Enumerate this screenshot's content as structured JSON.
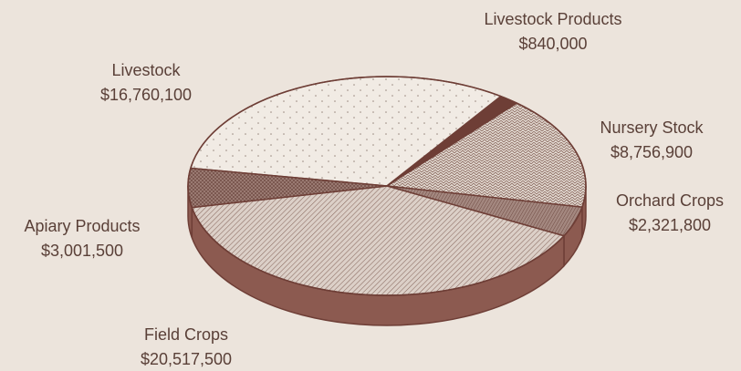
{
  "chart_data": {
    "type": "pie",
    "title": "",
    "currency_format": "$",
    "slices": [
      {
        "name": "Livestock",
        "value": 16760100,
        "value_label": "$16,760,100"
      },
      {
        "name": "Livestock Products",
        "value": 840000,
        "value_label": "$840,000"
      },
      {
        "name": "Nursery Stock",
        "value": 8756900,
        "value_label": "$8,756,900"
      },
      {
        "name": "Orchard Crops",
        "value": 2321800,
        "value_label": "$2,321,800"
      },
      {
        "name": "Field Crops",
        "value": 20517500,
        "value_label": "$20,517,500"
      },
      {
        "name": "Apiary Products",
        "value": 3001500,
        "value_label": "$3,001,500"
      }
    ],
    "colors": {
      "background": "#ece4dc",
      "edge": "#6e3e36",
      "rim": "#8c5a50",
      "text": "#5a4038"
    }
  }
}
